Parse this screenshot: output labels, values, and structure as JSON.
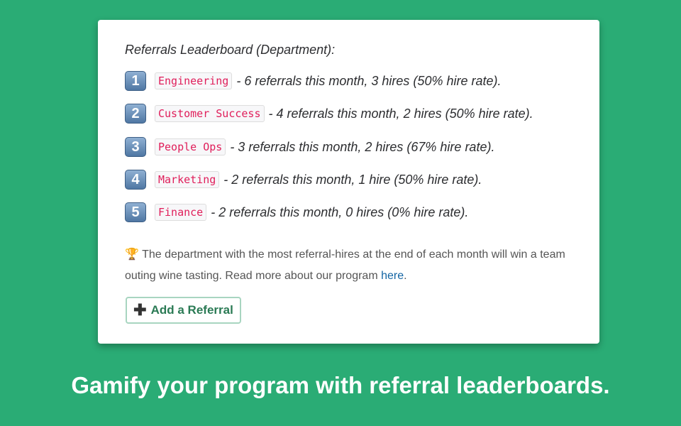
{
  "leaderboard": {
    "title": "Referrals Leaderboard (Department):",
    "rows": [
      {
        "rank": "1",
        "dept": "Engineering",
        "text": "- 6 referrals this month, 3 hires (50% hire rate)."
      },
      {
        "rank": "2",
        "dept": "Customer Success",
        "text": "- 4 referrals this month, 2 hires (50% hire rate)."
      },
      {
        "rank": "3",
        "dept": "People Ops",
        "text": "- 3 referrals this month, 2 hires (67% hire rate)."
      },
      {
        "rank": "4",
        "dept": "Marketing",
        "text": "- 2 referrals this month, 1 hire (50% hire rate)."
      },
      {
        "rank": "5",
        "dept": "Finance",
        "text": "- 2 referrals this month, 0 hires (0% hire rate)."
      }
    ],
    "note_icon": "trophy-icon",
    "note_text": "The department with the most referral-hires at the end of each month will win a team outing wine tasting. Read more about our program ",
    "note_link": "here",
    "note_end": ".",
    "button_icon": "plus-icon",
    "button_label": "Add a Referral"
  },
  "caption": "Gamify your program with referral leaderboards."
}
